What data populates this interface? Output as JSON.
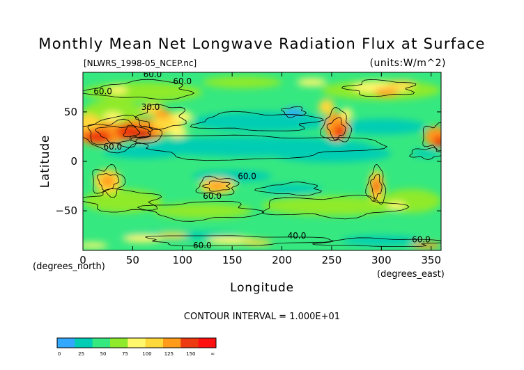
{
  "chart_data": {
    "type": "heatmap",
    "title": "Monthly Mean Net Longwave Radiation Flux at Surface",
    "subtitle_left": "[NLWRS_1998-05_NCEP.nc]",
    "subtitle_right": "(units:W/m^2)",
    "xlabel": "Longitude",
    "ylabel": "Latitude",
    "x_unit_label": "(degrees_east)",
    "y_unit_label": "(degrees_north)",
    "xlim": [
      0,
      360
    ],
    "ylim": [
      -90,
      90
    ],
    "x_ticks": [
      0,
      50,
      100,
      150,
      200,
      250,
      300,
      350
    ],
    "y_ticks": [
      50,
      0,
      -50
    ],
    "contour_interval_text": "CONTOUR INTERVAL = 1.000E+01",
    "contour_labels": [
      {
        "text": "60.0",
        "lon": 70,
        "lat": 85
      },
      {
        "text": "60.0",
        "lon": 100,
        "lat": 78
      },
      {
        "text": "60.0",
        "lon": 20,
        "lat": 68
      },
      {
        "text": "30.0",
        "lon": 68,
        "lat": 52
      },
      {
        "text": "60.0",
        "lon": 30,
        "lat": 12
      },
      {
        "text": "60.0",
        "lon": 165,
        "lat": -18
      },
      {
        "text": "60.0",
        "lon": 130,
        "lat": -38
      },
      {
        "text": "40.0",
        "lon": 215,
        "lat": -78
      },
      {
        "text": "60.0",
        "lon": 120,
        "lat": -88
      },
      {
        "text": "60.0",
        "lon": 340,
        "lat": -82
      }
    ],
    "colorbar": {
      "ticks": [
        "0",
        "25",
        "50",
        "75",
        "100",
        "125",
        "150",
        "∞"
      ],
      "colors": [
        "#33a8ff",
        "#00cdb4",
        "#36e880",
        "#8fea2c",
        "#fff86c",
        "#ffd83a",
        "#ff9a1a",
        "#ee3a10",
        "#ff1010"
      ]
    }
  }
}
